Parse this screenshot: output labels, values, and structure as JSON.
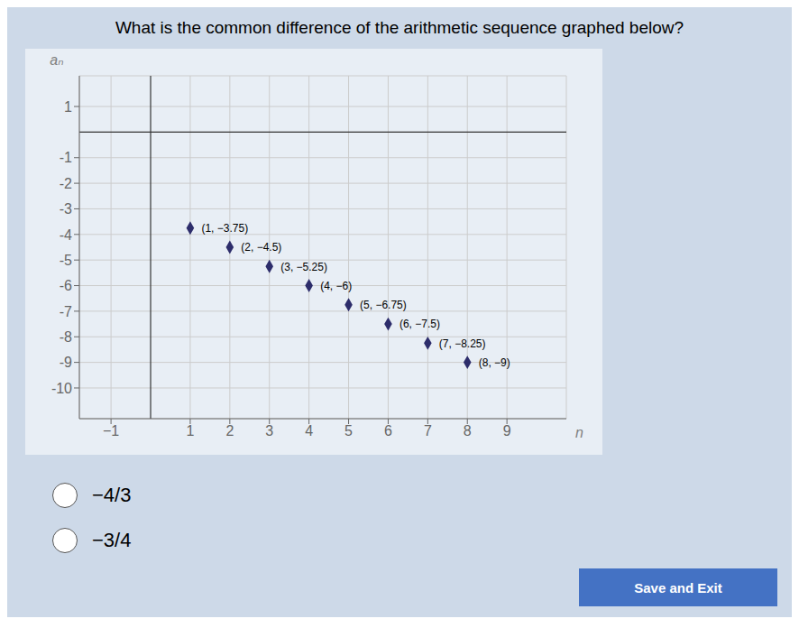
{
  "chart_data": {
    "type": "scatter",
    "title": "What is the common difference of the arithmetic sequence graphed below?",
    "xlabel": "n",
    "ylabel": "aₙ",
    "x": [
      1,
      2,
      3,
      4,
      5,
      6,
      7,
      8
    ],
    "values": [
      -3.75,
      -4.5,
      -5.25,
      -6.0,
      -6.75,
      -7.5,
      -8.25,
      -9.0
    ],
    "value_labels": [
      "(1, −3.75)",
      "(2, −4.5)",
      "(3, −5.25)",
      "(4, −6)",
      "(5, −6.75)",
      "(6, −7.5)",
      "(7, −8.25)",
      "(8, −9)"
    ],
    "data_labels": true,
    "color": "#2d2d6b",
    "marker": "diamond",
    "xlim": [
      -1.8,
      10.5
    ],
    "ylim": [
      -11.2,
      2.2
    ],
    "xticks": [
      {
        "value": -1,
        "label": "−1"
      },
      1,
      2,
      3,
      4,
      5,
      6,
      7,
      8,
      9
    ],
    "yticks": [
      1,
      -1,
      -2,
      -3,
      -4,
      -5,
      -6,
      -7,
      -8,
      -9,
      -10
    ],
    "grid": true,
    "annotations": [
      "−4/3",
      "−3/4",
      "Save and Exit"
    ]
  }
}
